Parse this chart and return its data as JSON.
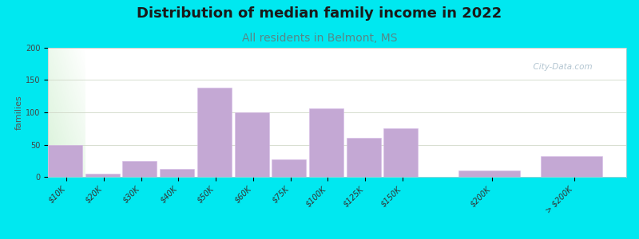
{
  "title": "Distribution of median family income in 2022",
  "subtitle": "All residents in Belmont, MS",
  "ylabel": "families",
  "categories": [
    "$10K",
    "$20K",
    "$30K",
    "$40K",
    "$50K",
    "$60K",
    "$75K",
    "$100K",
    "$125K",
    "$150K",
    "$200K",
    "> $200K"
  ],
  "values": [
    50,
    5,
    25,
    12,
    138,
    100,
    27,
    106,
    60,
    75,
    10,
    32
  ],
  "bar_color": "#c4a8d4",
  "background_outer": "#00e8f0",
  "title_fontsize": 13,
  "subtitle_fontsize": 10,
  "subtitle_color": "#558888",
  "ylabel_fontsize": 8,
  "tick_fontsize": 7,
  "ylim": [
    0,
    200
  ],
  "yticks": [
    0,
    50,
    100,
    150,
    200
  ],
  "watermark_text": "  City-Data.com",
  "watermark_color": "#aabfcc"
}
